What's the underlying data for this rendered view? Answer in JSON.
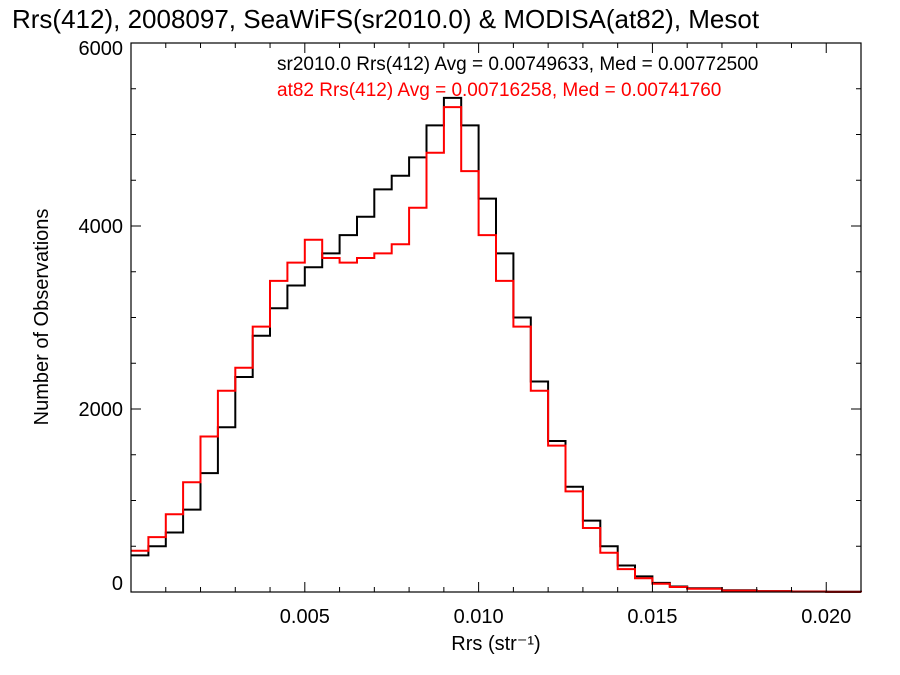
{
  "chart_data": {
    "type": "line",
    "title": "Rrs(412), 2008097, SeaWiFS(sr2010.0) & MODISA(at82), Mesot",
    "xlabel": "Rrs (str⁻¹)",
    "ylabel": "Number of Observations",
    "xlim": [
      0.0,
      0.021
    ],
    "ylim": [
      0,
      6000
    ],
    "grid": false,
    "step": true,
    "x_ticks": [
      {
        "value": 0.005,
        "label": "0.005"
      },
      {
        "value": 0.01,
        "label": "0.010"
      },
      {
        "value": 0.015,
        "label": "0.015"
      },
      {
        "value": 0.02,
        "label": "0.020"
      }
    ],
    "y_ticks": [
      {
        "value": 0,
        "label": "0"
      },
      {
        "value": 2000,
        "label": "2000"
      },
      {
        "value": 4000,
        "label": "4000"
      },
      {
        "value": 6000,
        "label": "6000"
      }
    ],
    "annotations": [
      {
        "text": "sr2010.0 Rrs(412) Avg = 0.00749633, Med = 0.00772500",
        "color": "#000000"
      },
      {
        "text": "at82 Rrs(412) Avg = 0.00716258, Med = 0.00741760",
        "color": "#ff0000"
      }
    ],
    "series": [
      {
        "color": "#000000",
        "x": [
          0.0,
          0.0005,
          0.001,
          0.0015,
          0.002,
          0.0025,
          0.003,
          0.0035,
          0.004,
          0.0045,
          0.005,
          0.0055,
          0.006,
          0.0065,
          0.007,
          0.0075,
          0.008,
          0.0085,
          0.009,
          0.0095,
          0.01,
          0.0105,
          0.011,
          0.0115,
          0.012,
          0.0125,
          0.013,
          0.0135,
          0.014,
          0.0145,
          0.015,
          0.0155,
          0.016,
          0.017,
          0.018,
          0.019,
          0.02,
          0.021
        ],
        "y": [
          400,
          500,
          650,
          900,
          1300,
          1800,
          2350,
          2800,
          3100,
          3350,
          3550,
          3700,
          3900,
          4100,
          4400,
          4550,
          4750,
          5100,
          5400,
          5100,
          4300,
          3700,
          3000,
          2300,
          1650,
          1150,
          780,
          500,
          290,
          170,
          100,
          60,
          40,
          20,
          10,
          5,
          2,
          0
        ]
      },
      {
        "color": "#ff0000",
        "x": [
          0.0,
          0.0005,
          0.001,
          0.0015,
          0.002,
          0.0025,
          0.003,
          0.0035,
          0.004,
          0.0045,
          0.005,
          0.0055,
          0.006,
          0.0065,
          0.007,
          0.0075,
          0.008,
          0.0085,
          0.009,
          0.0095,
          0.01,
          0.0105,
          0.011,
          0.0115,
          0.012,
          0.0125,
          0.013,
          0.0135,
          0.014,
          0.0145,
          0.015,
          0.0155,
          0.016,
          0.017,
          0.018,
          0.019,
          0.02,
          0.021
        ],
        "y": [
          450,
          600,
          850,
          1200,
          1700,
          2200,
          2450,
          2900,
          3400,
          3600,
          3850,
          3650,
          3600,
          3650,
          3700,
          3800,
          4200,
          4800,
          5300,
          4600,
          3900,
          3400,
          2900,
          2200,
          1600,
          1100,
          700,
          430,
          250,
          150,
          90,
          55,
          35,
          15,
          8,
          4,
          1,
          0
        ]
      }
    ]
  }
}
